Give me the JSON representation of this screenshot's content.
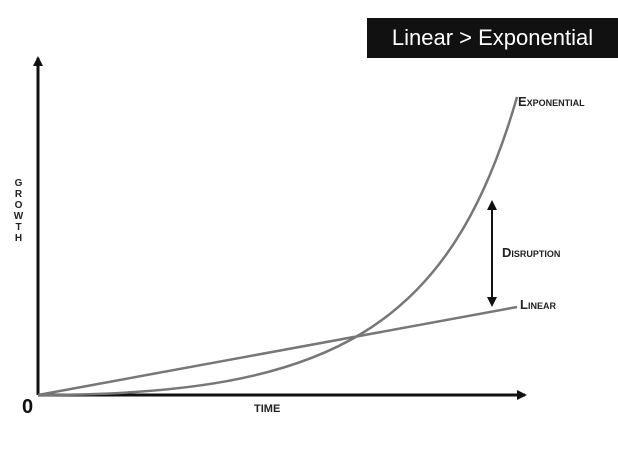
{
  "banner": {
    "title": "Linear > Exponential"
  },
  "diagram": {
    "y_axis_label": "GROWTH",
    "x_axis_label": "TIME",
    "origin_label": "0",
    "curves": [
      {
        "label": "Exponential"
      },
      {
        "label": "Linear"
      }
    ],
    "annotation": "Disruption"
  }
}
